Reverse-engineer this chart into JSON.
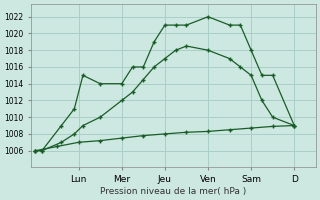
{
  "background_color": "#cce8e0",
  "grid_color": "#aacfc8",
  "line_color": "#1a5c28",
  "xlabel": "Pression niveau de la mer( hPa )",
  "ylim": [
    1004,
    1023.5
  ],
  "yticks": [
    1006,
    1008,
    1010,
    1012,
    1014,
    1016,
    1018,
    1020,
    1022
  ],
  "day_labels": [
    "Lun",
    "Mer",
    "Jeu",
    "Ven",
    "Sam",
    "D"
  ],
  "day_positions": [
    2,
    4,
    6,
    8,
    10,
    12
  ],
  "xlim": [
    -0.2,
    13.0
  ],
  "series_top_x": [
    0,
    0.3,
    1.2,
    1.8,
    2.2,
    3.0,
    4.0,
    4.5,
    5.0,
    5.5,
    6.0,
    6.5,
    7.0,
    8.0,
    9.0,
    9.5,
    10.0,
    10.5,
    11.0,
    12.0
  ],
  "series_top_y": [
    1006,
    1006,
    1009,
    1011,
    1015,
    1014,
    1014,
    1016,
    1016,
    1019,
    1021,
    1021,
    1021,
    1022,
    1021,
    1021,
    1018,
    1015,
    1015,
    1009
  ],
  "series_mid_x": [
    0,
    0.3,
    1.2,
    1.8,
    2.2,
    3.0,
    4.0,
    4.5,
    5.0,
    5.5,
    6.0,
    6.5,
    7.0,
    8.0,
    9.0,
    9.5,
    10.0,
    10.5,
    11.0,
    12.0
  ],
  "series_mid_y": [
    1006,
    1006,
    1007,
    1008,
    1009,
    1010,
    1012,
    1013,
    1014.5,
    1016,
    1017,
    1018,
    1018.5,
    1018,
    1017,
    1016,
    1015,
    1012,
    1010,
    1009
  ],
  "series_bot_x": [
    0,
    1.0,
    2.0,
    3.0,
    4.0,
    5.0,
    6.0,
    7.0,
    8.0,
    9.0,
    10.0,
    11.0,
    12.0
  ],
  "series_bot_y": [
    1006,
    1006.5,
    1007,
    1007.2,
    1007.5,
    1007.8,
    1008.0,
    1008.2,
    1008.3,
    1008.5,
    1008.7,
    1008.9,
    1009
  ]
}
